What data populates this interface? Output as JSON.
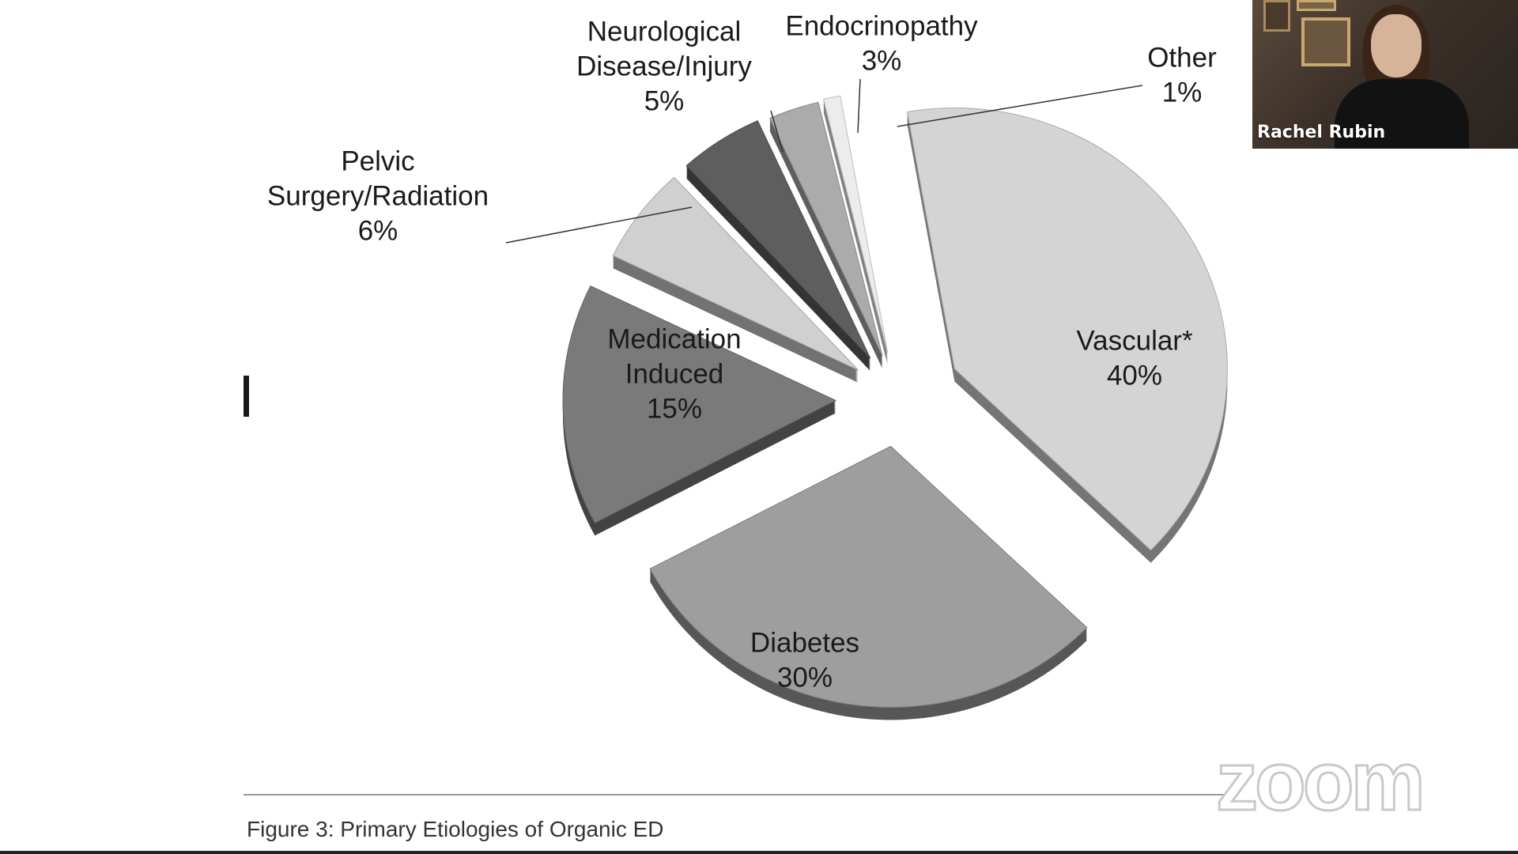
{
  "chart_data": {
    "type": "pie",
    "categories": [
      "Vascular*",
      "Diabetes",
      "Medication Induced",
      "Pelvic Surgery/Radiation",
      "Neurological Disease/Injury",
      "Endocrinopathy",
      "Other"
    ],
    "values": [
      40,
      30,
      15,
      6,
      5,
      3,
      1
    ],
    "label_lines": [
      [
        "Vascular*",
        "40%"
      ],
      [
        "Diabetes",
        "30%"
      ],
      [
        "Medication",
        "Induced",
        "15%"
      ],
      [
        "Pelvic",
        "Surgery/Radiation",
        "6%"
      ],
      [
        "Neurological",
        "Disease/Injury",
        "5%"
      ],
      [
        "Endocrinopathy",
        "3%"
      ],
      [
        "Other",
        "1%"
      ]
    ],
    "colors": [
      "#d4d4d4",
      "#9e9e9e",
      "#7a7a7a",
      "#d0d0d0",
      "#5e5e5e",
      "#ababab",
      "#ececec"
    ],
    "caption": "Figure 3: Primary Etiologies of Organic ED",
    "legend": "none",
    "grid": false
  },
  "video": {
    "participant_name": "Rachel Rubin"
  },
  "watermark": {
    "text": "zoom"
  }
}
